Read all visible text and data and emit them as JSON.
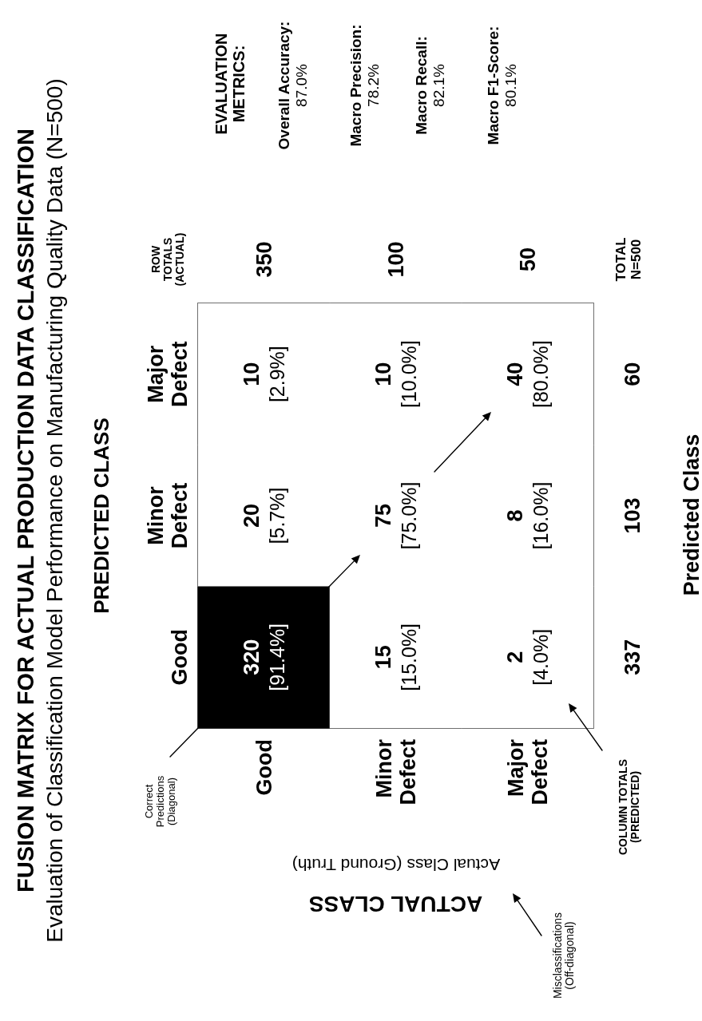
{
  "chart_data": {
    "type": "heatmap",
    "title": "FUSION MATRIX FOR ACTUAL PRODUCTION DATA CLASSIFICATION",
    "subtitle": "Evaluation of Classification Model Performance on Manufacturing Quality Data (N=500)",
    "xlabel": "ACTUAL CLASS",
    "ylabel": "PREDICTED CLASS",
    "categories": [
      "Good",
      "Minor Defect",
      "Major Defect"
    ],
    "y_categories": [
      "Major Defect",
      "Minor Defect",
      "Good"
    ],
    "y2_categories": [
      "60",
      "103",
      "337"
    ],
    "cells": [
      [
        10,
        10,
        40
      ],
      [
        20,
        75,
        8
      ],
      [
        320,
        15,
        2
      ]
    ],
    "data_labels": true,
    "colors": [
      "#ffffff",
      "#ffffff",
      "#ffffff",
      "#ffffff",
      "#ffffff",
      "#ffffff",
      "#000000",
      "#ffffff",
      "#ffffff"
    ],
    "annotations": [
      "Actual Class (Ground Truth)",
      "Predicted Class",
      "ROW TOTALS (ACTUAL)",
      "COLUMN TOTALS (PREDICTED)",
      "350",
      "100",
      "50",
      "TOTAL N=500",
      "Correct Predictions (Diagonal)",
      "Misclassifications (Off-diagonal)",
      "EVALUATION METRICS:",
      "Overall Accuracy: 87.0%",
      "Macro Precision: 78.2%",
      "Macro Recall: 82.1%",
      "Macro F1-Score: 80.1%",
      "[2.9%]",
      "[10.0%]",
      "[80.0%]",
      "[5.7%]",
      "[75.0%]",
      "[16.0%]",
      "[91.4%]",
      "[15.0%]",
      "[4.0%]"
    ]
  }
}
